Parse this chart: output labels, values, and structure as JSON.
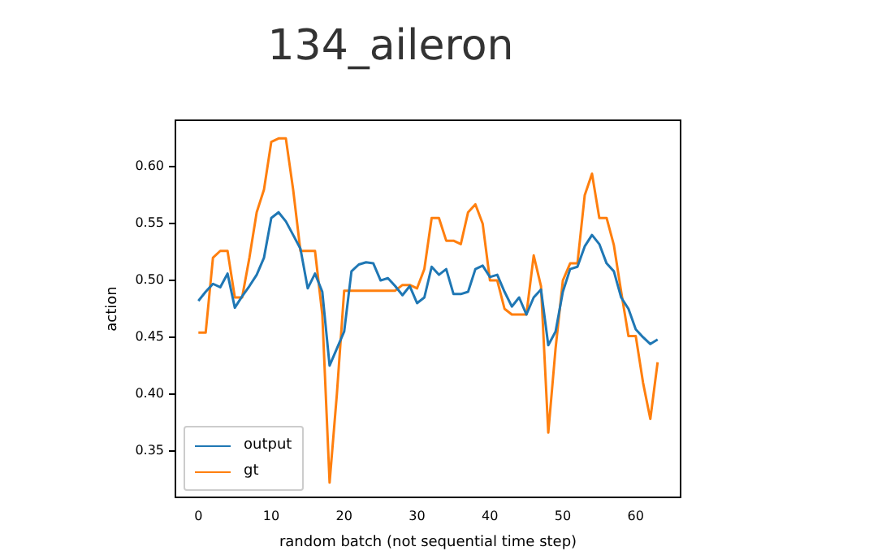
{
  "chart_data": {
    "type": "line",
    "title": "134_aileron",
    "xlabel": "random batch (not sequential time step)",
    "ylabel": "action",
    "x": [
      0,
      1,
      2,
      3,
      4,
      5,
      6,
      7,
      8,
      9,
      10,
      11,
      12,
      13,
      14,
      15,
      16,
      17,
      18,
      19,
      20,
      21,
      22,
      23,
      24,
      25,
      26,
      27,
      28,
      29,
      30,
      31,
      32,
      33,
      34,
      35,
      36,
      37,
      38,
      39,
      40,
      41,
      42,
      43,
      44,
      45,
      46,
      47,
      48,
      49,
      50,
      51,
      52,
      53,
      54,
      55,
      56,
      57,
      58,
      59,
      60,
      61,
      62,
      63
    ],
    "series": [
      {
        "name": "output",
        "color": "#1f77b4",
        "values": [
          0.482,
          0.49,
          0.497,
          0.494,
          0.506,
          0.476,
          0.486,
          0.495,
          0.505,
          0.52,
          0.555,
          0.56,
          0.552,
          0.54,
          0.528,
          0.493,
          0.506,
          0.49,
          0.425,
          0.44,
          0.455,
          0.508,
          0.514,
          0.516,
          0.515,
          0.5,
          0.502,
          0.495,
          0.487,
          0.495,
          0.48,
          0.485,
          0.512,
          0.505,
          0.51,
          0.488,
          0.488,
          0.49,
          0.51,
          0.513,
          0.503,
          0.505,
          0.49,
          0.477,
          0.485,
          0.47,
          0.485,
          0.492,
          0.443,
          0.455,
          0.49,
          0.51,
          0.512,
          0.53,
          0.54,
          0.532,
          0.515,
          0.508,
          0.485,
          0.475,
          0.457,
          0.45,
          0.444,
          0.448
        ]
      },
      {
        "name": "gt",
        "color": "#ff7f0e",
        "values": [
          0.454,
          0.454,
          0.52,
          0.526,
          0.526,
          0.485,
          0.485,
          0.52,
          0.56,
          0.58,
          0.622,
          0.625,
          0.625,
          0.58,
          0.526,
          0.526,
          0.526,
          0.47,
          0.322,
          0.4,
          0.491,
          0.491,
          0.491,
          0.491,
          0.491,
          0.491,
          0.491,
          0.491,
          0.496,
          0.496,
          0.493,
          0.51,
          0.555,
          0.555,
          0.535,
          0.535,
          0.532,
          0.56,
          0.567,
          0.55,
          0.5,
          0.5,
          0.475,
          0.47,
          0.47,
          0.47,
          0.522,
          0.495,
          0.366,
          0.44,
          0.5,
          0.515,
          0.515,
          0.575,
          0.594,
          0.555,
          0.555,
          0.531,
          0.49,
          0.451,
          0.451,
          0.41,
          0.378,
          0.428
        ]
      }
    ],
    "xlim": [
      -3.15,
      66.15
    ],
    "xticks": [
      0,
      10,
      20,
      30,
      40,
      50,
      60
    ],
    "ylim": [
      0.309,
      0.641
    ],
    "yticks": [
      0.35,
      {
        "value": 0.4,
        "label": "0.40"
      },
      0.45,
      {
        "value": 0.5,
        "label": "0.50"
      },
      0.55,
      {
        "value": 0.6,
        "label": "0.60"
      }
    ],
    "legend": "bottom left",
    "marker": "none",
    "line_style": "solid",
    "grid": false
  }
}
